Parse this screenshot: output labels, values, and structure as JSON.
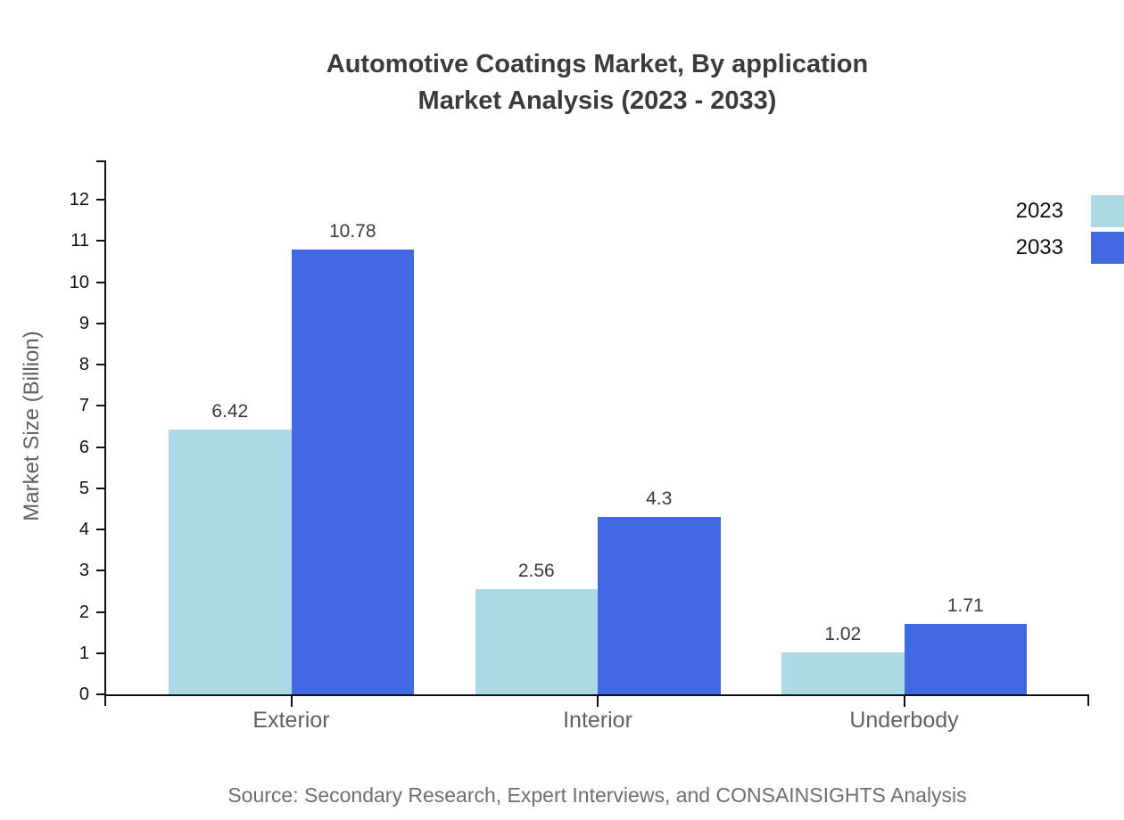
{
  "title": {
    "line1": "Automotive Coatings Market, By application",
    "line2": "Market Analysis (2023 - 2033)"
  },
  "chart_data": {
    "type": "bar",
    "categories": [
      "Exterior",
      "Interior",
      "Underbody"
    ],
    "series": [
      {
        "name": "2023",
        "color": "#ADD8E6",
        "values": [
          6.42,
          2.56,
          1.02
        ]
      },
      {
        "name": "2033",
        "color": "#4169E1",
        "values": [
          10.78,
          4.3,
          1.71
        ]
      }
    ],
    "value_labels": [
      [
        "6.42",
        "2.56",
        "1.02"
      ],
      [
        "10.78",
        "4.3",
        "1.71"
      ]
    ],
    "xlabel": "",
    "ylabel": "Market Size (Billion)",
    "ylim": [
      0,
      12
    ],
    "yticks": [
      0,
      1,
      2,
      3,
      4,
      5,
      6,
      7,
      8,
      9,
      10,
      11,
      12
    ],
    "grid": false,
    "legend_position": "top-right"
  },
  "source": "Source: Secondary Research, Expert Interviews, and CONSAINSIGHTS Analysis"
}
